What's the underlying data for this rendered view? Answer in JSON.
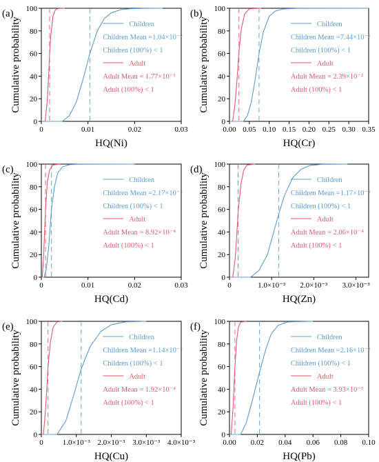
{
  "colors": {
    "children": "#5b9bd5",
    "adult": "#e05a6e",
    "axis": "#000000"
  },
  "chart_data": [
    {
      "panel_label": "(a)",
      "type": "line",
      "xlabel": "HQ(Ni)",
      "ylabel": "Cumulative probability",
      "xlim": [
        0,
        0.03
      ],
      "ylim": [
        0,
        100
      ],
      "xticks": [
        0,
        0.01,
        0.02,
        0.03
      ],
      "xtick_labels": [
        "0",
        "0.01",
        "0.02",
        "0.03"
      ],
      "yticks": [
        0,
        20,
        40,
        60,
        80,
        100
      ],
      "ytick_labels": [
        "0",
        "20",
        "40",
        "60",
        "80",
        "100"
      ],
      "legend_position": "right",
      "series": [
        {
          "name": "Children",
          "mean": 0.0104,
          "x": [
            0.0045,
            0.006,
            0.0075,
            0.009,
            0.0104,
            0.012,
            0.0135,
            0.015,
            0.017,
            0.019,
            0.022,
            0.026
          ],
          "y": [
            0,
            5,
            17,
            38,
            60,
            80,
            91,
            96,
            98.8,
            99.6,
            99.9,
            100
          ]
        },
        {
          "name": "Adult",
          "mean": 0.00177,
          "x": [
            0.0008,
            0.0012,
            0.0015,
            0.00177,
            0.002,
            0.0025,
            0.003,
            0.0035,
            0.005
          ],
          "y": [
            0,
            15,
            35,
            60,
            75,
            93,
            98.5,
            99.7,
            100
          ]
        }
      ],
      "legend": [
        {
          "text": "Children",
          "kind": "line",
          "series": "children"
        },
        {
          "text": "Children Mean =1.04×10⁻²",
          "kind": "dash",
          "series": "children"
        },
        {
          "text": "Children (100%)  < 1",
          "kind": "none",
          "series": "children"
        },
        {
          "text": "Adult",
          "kind": "line",
          "series": "adult"
        },
        {
          "text": "Adult Mean = 1.77×10⁻³",
          "kind": "dash",
          "series": "adult"
        },
        {
          "text": "Adult (100%)  < 1",
          "kind": "none",
          "series": "adult"
        }
      ]
    },
    {
      "panel_label": "(b)",
      "type": "line",
      "xlabel": "HQ(Cr)",
      "ylabel": "Cumulative probability",
      "xlim": [
        0,
        0.35
      ],
      "ylim": [
        0,
        100
      ],
      "xticks": [
        0,
        0.05,
        0.1,
        0.15,
        0.2,
        0.25,
        0.3,
        0.35
      ],
      "xtick_labels": [
        "0.00",
        "0.05",
        "0.10",
        "0.15",
        "0.20",
        "0.25",
        "0.30",
        "0.35"
      ],
      "yticks": [
        0,
        20,
        40,
        60,
        80,
        100
      ],
      "ytick_labels": [
        "0",
        "20",
        "40",
        "60",
        "80",
        "100"
      ],
      "legend_position": "right",
      "series": [
        {
          "name": "Children",
          "mean": 0.0744,
          "x": [
            0.035,
            0.045,
            0.055,
            0.065,
            0.0744,
            0.085,
            0.1,
            0.115,
            0.135,
            0.17,
            0.35
          ],
          "y": [
            0,
            5,
            17,
            38,
            60,
            79,
            93,
            97.5,
            99.4,
            99.9,
            100
          ]
        },
        {
          "name": "Adult",
          "mean": 0.0239,
          "x": [
            0.008,
            0.013,
            0.018,
            0.0239,
            0.03,
            0.038,
            0.05,
            0.08
          ],
          "y": [
            0,
            12,
            32,
            62,
            82,
            95,
            99.5,
            100
          ]
        }
      ],
      "legend": [
        {
          "text": "Children",
          "kind": "line",
          "series": "children"
        },
        {
          "text": "Children Mean =7.44×10⁻²",
          "kind": "dash",
          "series": "children"
        },
        {
          "text": "Children (100%)  < 1",
          "kind": "none",
          "series": "children"
        },
        {
          "text": "Adult",
          "kind": "line",
          "series": "adult"
        },
        {
          "text": "Adult Mean = 2.39×10⁻²",
          "kind": "dash",
          "series": "adult"
        },
        {
          "text": "Adult (100%)  < 1",
          "kind": "none",
          "series": "adult"
        }
      ]
    },
    {
      "panel_label": "(c)",
      "type": "line",
      "xlabel": "HQ(Cd)",
      "ylabel": "Cumulative probability",
      "xlim": [
        0,
        0.03
      ],
      "ylim": [
        0,
        100
      ],
      "xticks": [
        0,
        0.01,
        0.02,
        0.03
      ],
      "xtick_labels": [
        "0",
        "0.01",
        "0.02",
        "0.03"
      ],
      "yticks": [
        0,
        20,
        40,
        60,
        80,
        100
      ],
      "ytick_labels": [
        "0",
        "20",
        "40",
        "60",
        "80",
        "100"
      ],
      "legend_position": "right",
      "series": [
        {
          "name": "Children",
          "mean": 0.00217,
          "x": [
            0.0006,
            0.0011,
            0.0016,
            0.00217,
            0.0028,
            0.0035,
            0.0045,
            0.006,
            0.008,
            0.02
          ],
          "y": [
            0,
            8,
            28,
            60,
            80,
            92,
            97.5,
            99.5,
            99.9,
            100
          ]
        },
        {
          "name": "Adult",
          "mean": 0.000892,
          "x": [
            0.0002,
            0.0005,
            0.000892,
            0.0013,
            0.0018,
            0.0025,
            0.004
          ],
          "y": [
            0,
            20,
            60,
            85,
            95,
            99.3,
            100
          ]
        }
      ],
      "legend": [
        {
          "text": "Children",
          "kind": "line",
          "series": "children"
        },
        {
          "text": "Children Mean =2.17×10⁻³",
          "kind": "dash",
          "series": "children"
        },
        {
          "text": "Children (100%)  < 1",
          "kind": "none",
          "series": "children"
        },
        {
          "text": "Adult",
          "kind": "line",
          "series": "adult"
        },
        {
          "text": "Adult Mean = 8.92×10⁻⁴",
          "kind": "dash",
          "series": "adult"
        },
        {
          "text": "Adult (100%)  < 1",
          "kind": "none",
          "series": "adult"
        }
      ]
    },
    {
      "panel_label": "(d)",
      "type": "line",
      "xlabel": "HQ(Zn)",
      "ylabel": "Cumulative probability",
      "xlim": [
        0,
        0.0033
      ],
      "ylim": [
        0,
        100
      ],
      "xticks": [
        0,
        0.001,
        0.002,
        0.003
      ],
      "xtick_labels": [
        "0",
        "1.0×10⁻³",
        "2.0×10⁻³",
        "3.0×10⁻³"
      ],
      "yticks": [
        0,
        20,
        40,
        60,
        80,
        100
      ],
      "ytick_labels": [
        "0",
        "20",
        "40",
        "60",
        "80",
        "100"
      ],
      "legend_position": "right",
      "series": [
        {
          "name": "Children",
          "mean": 0.00117,
          "x": [
            0.0005,
            0.0007,
            0.0009,
            0.00105,
            0.00117,
            0.0013,
            0.0015,
            0.0017,
            0.0019,
            0.0022,
            0.0028
          ],
          "y": [
            0,
            6,
            20,
            40,
            56,
            72,
            88,
            95.5,
            98.8,
            99.8,
            100
          ]
        },
        {
          "name": "Adult",
          "mean": 0.000206,
          "x": [
            8e-05,
            0.00014,
            0.000206,
            0.00027,
            0.00034,
            0.00042,
            0.0006
          ],
          "y": [
            0,
            18,
            58,
            82,
            95,
            99.2,
            100
          ]
        }
      ],
      "legend": [
        {
          "text": "Children",
          "kind": "line",
          "series": "children"
        },
        {
          "text": "Children Mean =1.17×10⁻³",
          "kind": "dash",
          "series": "children"
        },
        {
          "text": "Children (100%)  < 1",
          "kind": "none",
          "series": "children"
        },
        {
          "text": "Adult",
          "kind": "line",
          "series": "adult"
        },
        {
          "text": "Adult Mean = 2.06×10⁻⁴",
          "kind": "dash",
          "series": "adult"
        },
        {
          "text": "Adult (100%)  < 1",
          "kind": "none",
          "series": "adult"
        }
      ]
    },
    {
      "panel_label": "(e)",
      "type": "line",
      "xlabel": "HQ(Cu)",
      "ylabel": "Cumulative probability",
      "xlim": [
        0,
        0.004
      ],
      "ylim": [
        0,
        100
      ],
      "xticks": [
        0,
        0.001,
        0.002,
        0.003,
        0.004
      ],
      "xtick_labels": [
        "0",
        "1.0×10⁻³",
        "2.0×10⁻³",
        "3.0×10⁻³",
        "4.0×10⁻³"
      ],
      "yticks": [
        0,
        20,
        40,
        60,
        80,
        100
      ],
      "ytick_labels": [
        "0",
        "20",
        "40",
        "60",
        "80",
        "100"
      ],
      "legend_position": "right",
      "series": [
        {
          "name": "Children",
          "mean": 0.00114,
          "x": [
            0.00045,
            0.0007,
            0.0009,
            0.00114,
            0.0014,
            0.0017,
            0.002,
            0.0024,
            0.003
          ],
          "y": [
            0,
            12,
            32,
            58,
            78,
            91,
            97,
            99.5,
            100
          ]
        },
        {
          "name": "Adult",
          "mean": 0.000192,
          "x": [
            6e-05,
            0.00012,
            0.000192,
            0.00026,
            0.00034,
            0.00045,
            0.0006
          ],
          "y": [
            0,
            22,
            60,
            82,
            95,
            99.5,
            100
          ]
        }
      ],
      "legend": [
        {
          "text": "Children",
          "kind": "line",
          "series": "children"
        },
        {
          "text": "Children Mean =1.14×10⁻³",
          "kind": "dash",
          "series": "children"
        },
        {
          "text": "Children (100%)  < 1",
          "kind": "none",
          "series": "children"
        },
        {
          "text": "Adult",
          "kind": "line",
          "series": "adult"
        },
        {
          "text": "Adult Mean = 1.92×10⁻⁴",
          "kind": "dash",
          "series": "adult"
        },
        {
          "text": "Adult (100%)  < 1",
          "kind": "none",
          "series": "adult"
        }
      ]
    },
    {
      "panel_label": "(f)",
      "type": "line",
      "xlabel": "HQ(Pb)",
      "ylabel": "Cumulative probability",
      "xlim": [
        0,
        0.1
      ],
      "ylim": [
        0,
        100
      ],
      "xticks": [
        0,
        0.02,
        0.04,
        0.06,
        0.08,
        0.1
      ],
      "xtick_labels": [
        "0.00",
        "0.02",
        "0.04",
        "0.06",
        "0.08",
        "0.10"
      ],
      "yticks": [
        0,
        20,
        40,
        60,
        80,
        100
      ],
      "ytick_labels": [
        "0",
        "20",
        "40",
        "60",
        "80",
        "100"
      ],
      "legend_position": "right",
      "series": [
        {
          "name": "Children",
          "mean": 0.0216,
          "x": [
            0.008,
            0.012,
            0.016,
            0.0216,
            0.026,
            0.03,
            0.035,
            0.042,
            0.06
          ],
          "y": [
            0,
            10,
            28,
            55,
            75,
            89,
            96.5,
            99.5,
            100
          ]
        },
        {
          "name": "Adult",
          "mean": 0.00393,
          "x": [
            0.0012,
            0.0025,
            0.00393,
            0.0052,
            0.0065,
            0.008,
            0.012
          ],
          "y": [
            0,
            22,
            60,
            84,
            95,
            99.3,
            100
          ]
        }
      ],
      "legend": [
        {
          "text": "Children",
          "kind": "line",
          "series": "children"
        },
        {
          "text": "Children Mean =2.16×10⁻²",
          "kind": "dash",
          "series": "children"
        },
        {
          "text": "Children (100%)  < 1",
          "kind": "none",
          "series": "children"
        },
        {
          "text": "Adult",
          "kind": "line",
          "series": "adult"
        },
        {
          "text": "Adult Mean = 3.93×10⁻³",
          "kind": "dash",
          "series": "adult"
        },
        {
          "text": "Adult (100%)  < 1",
          "kind": "none",
          "series": "adult"
        }
      ]
    }
  ]
}
